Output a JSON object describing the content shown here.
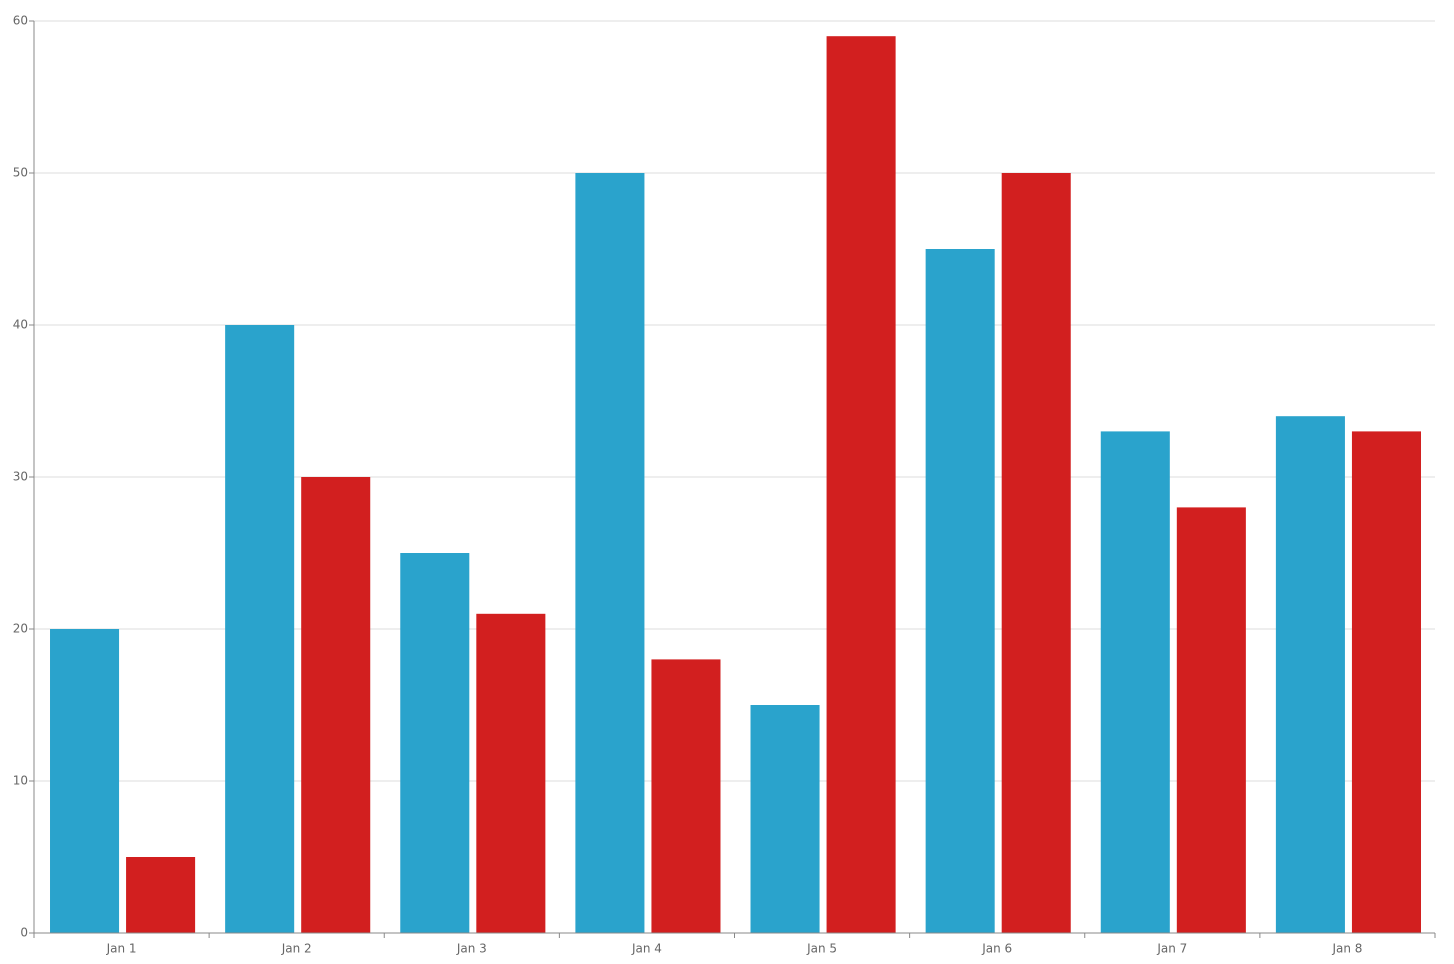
{
  "chart_data": {
    "type": "bar",
    "categories": [
      "Jan 1",
      "Jan 2",
      "Jan 3",
      "Jan 4",
      "Jan 5",
      "Jan 6",
      "Jan 7",
      "Jan 8"
    ],
    "series": [
      {
        "color": "#2aa3cc",
        "values": [
          20,
          40,
          25,
          50,
          15,
          45,
          33,
          34
        ]
      },
      {
        "color": "#d21f1f",
        "values": [
          5,
          30,
          21,
          18,
          59,
          50,
          28,
          33
        ]
      }
    ],
    "ylim": [
      0,
      60
    ],
    "yticks": [
      0,
      10,
      20,
      30,
      40,
      50,
      60
    ],
    "grid": true
  }
}
